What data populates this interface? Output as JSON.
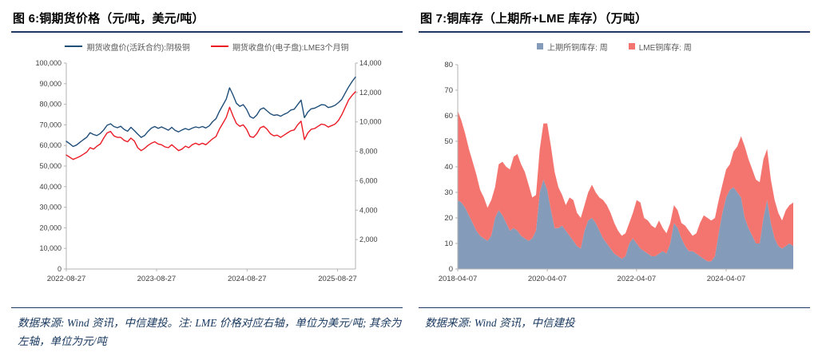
{
  "page": {
    "background": "#ffffff",
    "rule_color": "#1f3864"
  },
  "panels": [
    {
      "title": "图 6:铜期货价格（元/吨，美元/吨）",
      "footer": "数据来源: Wind 资讯，中信建投。注: LME 价格对应右轴，单位为美元/吨; 其余为左轴，单位为元/吨"
    },
    {
      "title": "图 7:铜库存（上期所+LME 库存）（万吨）",
      "footer": "数据来源: Wind 资讯，中信建投"
    }
  ],
  "chart_data": [
    {
      "type": "line",
      "title": "图 6:铜期货价格（元/吨，美元/吨）",
      "grid": false,
      "legend_position": "top",
      "x_tick_labels": [
        "2022-08-27",
        "2023-08-27",
        "2024-08-27",
        "2025-08-27"
      ],
      "x_tick_positions": [
        0,
        0.312,
        0.625,
        0.938
      ],
      "left_axis": {
        "min": 0,
        "max": 100000,
        "step": 10000,
        "unit": "元/吨"
      },
      "right_axis": {
        "min": 0,
        "max": 14000,
        "step": 2000,
        "unit": "美元/吨"
      },
      "series": [
        {
          "name": "期货收盘价(活跃合约):阴极铜",
          "axis": "left",
          "color": "#1f4e79",
          "values": [
            62000,
            60800,
            59500,
            60200,
            61500,
            62800,
            64000,
            66200,
            65300,
            64800,
            65800,
            67500,
            69800,
            70500,
            69200,
            68600,
            69300,
            67800,
            66900,
            68800,
            67200,
            65500,
            63900,
            64800,
            66800,
            68400,
            69200,
            68300,
            69000,
            68200,
            67400,
            68800,
            67300,
            66600,
            67500,
            68200,
            67600,
            68400,
            69000,
            68600,
            69200,
            68500,
            69500,
            71500,
            73000,
            76500,
            79500,
            82500,
            88000,
            84500,
            80500,
            79000,
            79800,
            77500,
            74000,
            73200,
            74800,
            77500,
            78200,
            76800,
            75400,
            74600,
            74900,
            74200,
            75100,
            75800,
            77200,
            77600,
            79800,
            82000,
            73500,
            76200,
            77800,
            78100,
            78900,
            79800,
            79600,
            78400,
            78800,
            79500,
            80800,
            82500,
            85500,
            88500,
            91000,
            93200
          ]
        },
        {
          "name": "期货收盘价(电子盘):LME3个月铜",
          "axis": "right",
          "color": "#eb1c26",
          "values": [
            7750,
            7600,
            7450,
            7550,
            7650,
            7800,
            7950,
            8250,
            8150,
            8350,
            8500,
            8900,
            9250,
            9350,
            9050,
            8950,
            8950,
            8750,
            8650,
            8900,
            8700,
            8250,
            8050,
            8200,
            8400,
            8550,
            8650,
            8500,
            8450,
            8300,
            8250,
            8450,
            8250,
            8050,
            8150,
            8350,
            8250,
            8450,
            8550,
            8450,
            8550,
            8450,
            8650,
            8850,
            9000,
            9500,
            9900,
            10300,
            11000,
            10400,
            9900,
            9700,
            9800,
            9500,
            9000,
            8950,
            9200,
            9600,
            9700,
            9500,
            9200,
            9050,
            9100,
            8950,
            9100,
            9250,
            9400,
            9450,
            9800,
            10050,
            8800,
            9250,
            9500,
            9550,
            9700,
            9850,
            9800,
            9650,
            9750,
            9850,
            10100,
            10500,
            11000,
            11500,
            11800,
            12050
          ]
        }
      ]
    },
    {
      "type": "area",
      "stacked": true,
      "title": "图 7:铜库存（上期所+LME 库存）（万吨）",
      "grid": false,
      "legend_position": "top",
      "x_tick_labels": [
        "2018-04-07",
        "2020-04-07",
        "2022-04-07",
        "2024-04-07"
      ],
      "x_tick_positions": [
        0,
        0.267,
        0.533,
        0.8
      ],
      "y_axis": {
        "min": 0,
        "max": 80,
        "step": 10,
        "unit": "万吨"
      },
      "series": [
        {
          "name": "上期所铜库存: 周",
          "color": "#849cba",
          "values": [
            27,
            26,
            24,
            21,
            18,
            15,
            13,
            12,
            11,
            13,
            20,
            23,
            21,
            18,
            15,
            16,
            15,
            13,
            12,
            11,
            12,
            15,
            30,
            35,
            31,
            23,
            16,
            16,
            17,
            15,
            13,
            11,
            9,
            8,
            15,
            19,
            20,
            18,
            15,
            12,
            10,
            8,
            6,
            5,
            4,
            5,
            10,
            12,
            10,
            8,
            7,
            6,
            5,
            5,
            6,
            7,
            6,
            10,
            18,
            16,
            12,
            9,
            7,
            7,
            6,
            5,
            4,
            3,
            3,
            5,
            14,
            22,
            28,
            31,
            32,
            30,
            28,
            20,
            16,
            13,
            10,
            10,
            20,
            27,
            18,
            12,
            9,
            8,
            9,
            10,
            9
          ]
        },
        {
          "name": "LME铜库存: 周",
          "color": "#f4756f",
          "values": [
            35,
            32,
            29,
            26,
            24,
            22,
            18,
            16,
            13,
            14,
            12,
            18,
            21,
            22,
            24,
            28,
            30,
            28,
            26,
            22,
            16,
            14,
            17,
            22,
            26,
            25,
            22,
            16,
            12,
            10,
            15,
            16,
            13,
            12,
            10,
            11,
            13,
            12,
            13,
            15,
            15,
            14,
            12,
            10,
            9,
            9,
            8,
            10,
            17,
            18,
            13,
            13,
            12,
            11,
            13,
            9,
            8,
            8,
            7,
            7,
            6,
            8,
            8,
            6,
            8,
            13,
            17,
            17,
            16,
            15,
            13,
            11,
            11,
            10,
            14,
            18,
            24,
            28,
            27,
            26,
            25,
            24,
            23,
            20,
            17,
            15,
            13,
            11,
            14,
            15,
            17
          ]
        }
      ]
    }
  ]
}
